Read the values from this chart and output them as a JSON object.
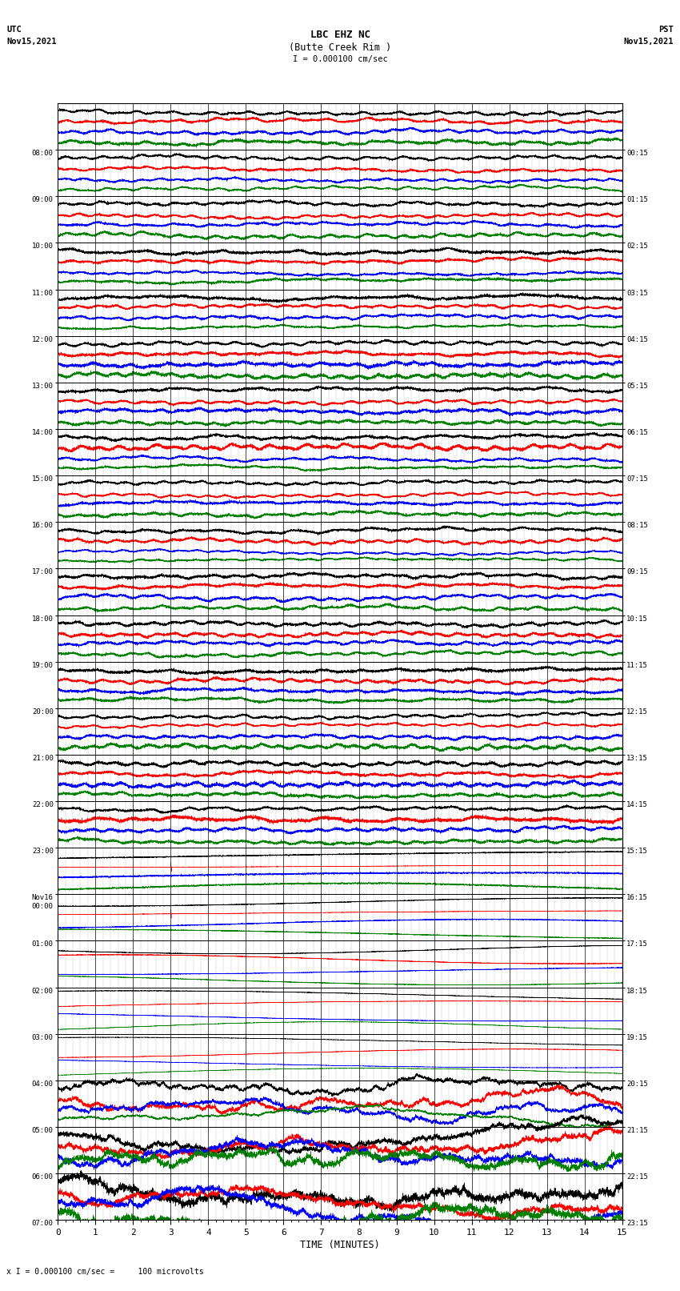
{
  "title_line1": "LBC EHZ NC",
  "title_line2": "(Butte Creek Rim )",
  "title_line3": "I = 0.000100 cm/sec",
  "left_header_line1": "UTC",
  "left_header_line2": "Nov15,2021",
  "right_header_line1": "PST",
  "right_header_line2": "Nov15,2021",
  "xlabel": "TIME (MINUTES)",
  "footer": "x I = 0.000100 cm/sec =     100 microvolts",
  "utc_labels": [
    "08:00",
    "09:00",
    "10:00",
    "11:00",
    "12:00",
    "13:00",
    "14:00",
    "15:00",
    "16:00",
    "17:00",
    "18:00",
    "19:00",
    "20:00",
    "21:00",
    "22:00",
    "23:00",
    "Nov16\n00:00",
    "01:00",
    "02:00",
    "03:00",
    "04:00",
    "05:00",
    "06:00",
    "07:00"
  ],
  "pst_labels": [
    "00:15",
    "01:15",
    "02:15",
    "03:15",
    "04:15",
    "05:15",
    "06:15",
    "07:15",
    "08:15",
    "09:15",
    "10:15",
    "11:15",
    "12:15",
    "13:15",
    "14:15",
    "15:15",
    "16:15",
    "17:15",
    "18:15",
    "19:15",
    "20:15",
    "21:15",
    "22:15",
    "23:15"
  ],
  "n_rows": 24,
  "n_points": 9000,
  "colors": [
    "black",
    "red",
    "blue",
    "green"
  ],
  "bg_color": "white",
  "figsize": [
    8.5,
    16.13
  ],
  "dpi": 100,
  "seed": 42
}
